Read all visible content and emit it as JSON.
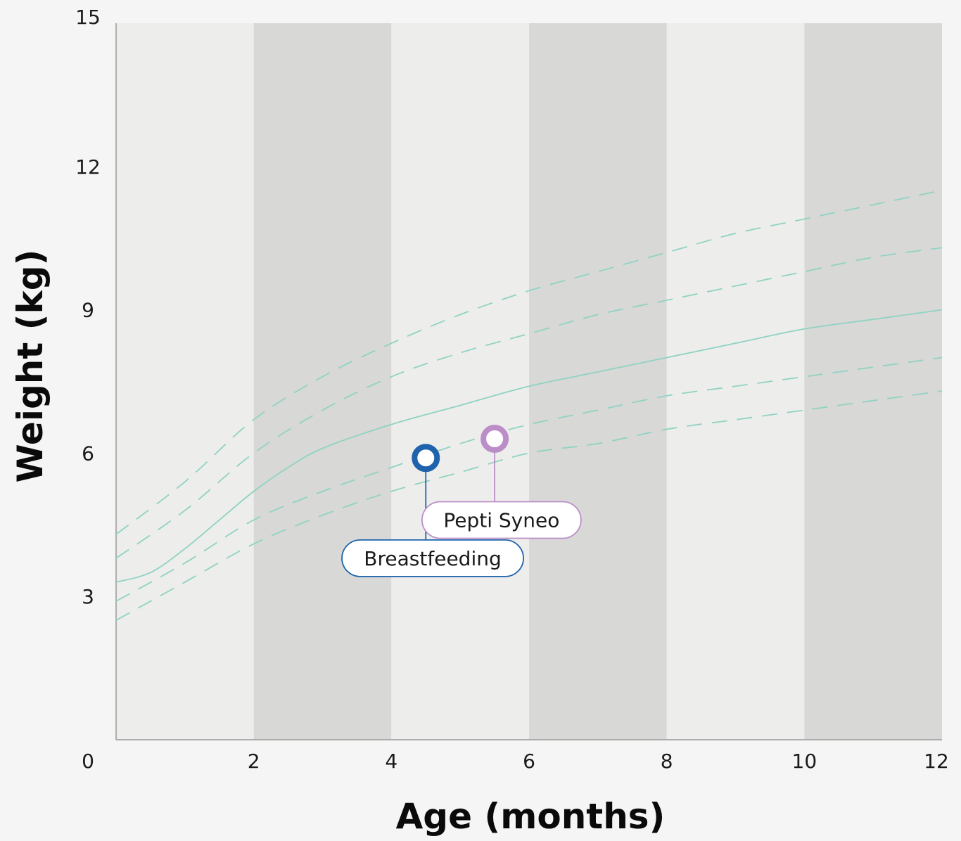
{
  "chart_data": {
    "type": "line",
    "xlabel": "Age (months)",
    "ylabel": "Weight (kg)",
    "xlim": [
      0,
      12
    ],
    "ylim": [
      0,
      15
    ],
    "x_ticks": [
      0,
      2,
      4,
      6,
      8,
      10,
      12
    ],
    "y_ticks": [
      3,
      6,
      9,
      12,
      15
    ],
    "band_colors": [
      "#ededec",
      "#d8d8d7"
    ],
    "curve_color": "#8fd3c2",
    "series": [
      {
        "style": "dashed",
        "x": [
          0,
          1,
          2,
          3,
          4,
          5,
          6,
          7,
          8,
          9,
          10,
          11,
          12
        ],
        "y": [
          4.3,
          5.4,
          6.7,
          7.6,
          8.3,
          8.9,
          9.4,
          9.8,
          10.2,
          10.6,
          10.9,
          11.2,
          11.5
        ]
      },
      {
        "style": "dashed",
        "x": [
          0,
          1,
          2,
          3,
          4,
          5,
          6,
          7,
          8,
          9,
          10,
          11,
          12
        ],
        "y": [
          3.8,
          4.8,
          6.0,
          6.9,
          7.6,
          8.1,
          8.5,
          8.9,
          9.2,
          9.5,
          9.8,
          10.1,
          10.3
        ]
      },
      {
        "style": "solid",
        "x": [
          0,
          0.5,
          1,
          1.5,
          2,
          2.5,
          3,
          4,
          5,
          6,
          7,
          8,
          9,
          10,
          11,
          12
        ],
        "y": [
          3.3,
          3.5,
          4.0,
          4.6,
          5.2,
          5.7,
          6.1,
          6.6,
          7.0,
          7.4,
          7.7,
          8.0,
          8.3,
          8.6,
          8.8,
          9.0
        ]
      },
      {
        "style": "dashed",
        "x": [
          0,
          1,
          2,
          3,
          4,
          5,
          6,
          7,
          8,
          9,
          10,
          11,
          12
        ],
        "y": [
          2.9,
          3.7,
          4.6,
          5.2,
          5.7,
          6.2,
          6.6,
          6.9,
          7.2,
          7.4,
          7.6,
          7.8,
          8.0
        ]
      },
      {
        "style": "dashed",
        "x": [
          0,
          1,
          2,
          3,
          4,
          5,
          6,
          7,
          8,
          9,
          10,
          11,
          12
        ],
        "y": [
          2.5,
          3.3,
          4.1,
          4.7,
          5.2,
          5.6,
          6.0,
          6.2,
          6.5,
          6.7,
          6.9,
          7.1,
          7.3
        ]
      }
    ],
    "markers": [
      {
        "label": "Breastfeeding",
        "x": 4.5,
        "y": 5.9,
        "color": "#1f63ad",
        "label_x": 4.6,
        "label_y": 3.8
      },
      {
        "label": "Pepti Syneo",
        "x": 5.5,
        "y": 6.3,
        "color": "#bb8ec8",
        "label_x": 5.6,
        "label_y": 4.6
      }
    ]
  }
}
